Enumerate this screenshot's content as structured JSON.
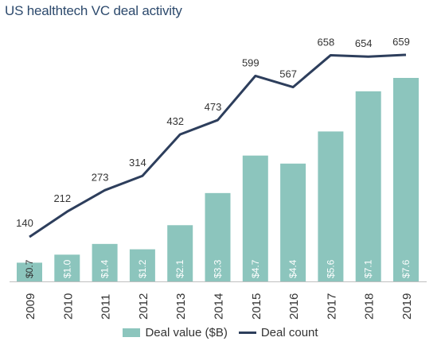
{
  "chart_data": {
    "type": "bar",
    "title": "US healthtech VC deal activity",
    "categories": [
      "2009",
      "2010",
      "2011",
      "2012",
      "2013",
      "2014",
      "2015",
      "2016",
      "2017",
      "2018",
      "2019"
    ],
    "series": [
      {
        "name": "Deal value ($B)",
        "type": "bar",
        "values": [
          0.7,
          1.0,
          1.4,
          1.2,
          2.1,
          3.3,
          4.7,
          4.4,
          5.6,
          7.1,
          7.6
        ],
        "labels": [
          "$0.7",
          "$1.0",
          "$1.4",
          "$1.2",
          "$2.1",
          "$3.3",
          "$4.7",
          "$4.4",
          "$5.6",
          "$7.1",
          "$7.6"
        ],
        "color": "#8cc5bd"
      },
      {
        "name": "Deal count",
        "type": "line",
        "values": [
          140,
          212,
          273,
          314,
          432,
          473,
          599,
          567,
          658,
          654,
          659
        ],
        "color": "#2d3e5c"
      }
    ],
    "grid": false,
    "legend": "bottom"
  }
}
